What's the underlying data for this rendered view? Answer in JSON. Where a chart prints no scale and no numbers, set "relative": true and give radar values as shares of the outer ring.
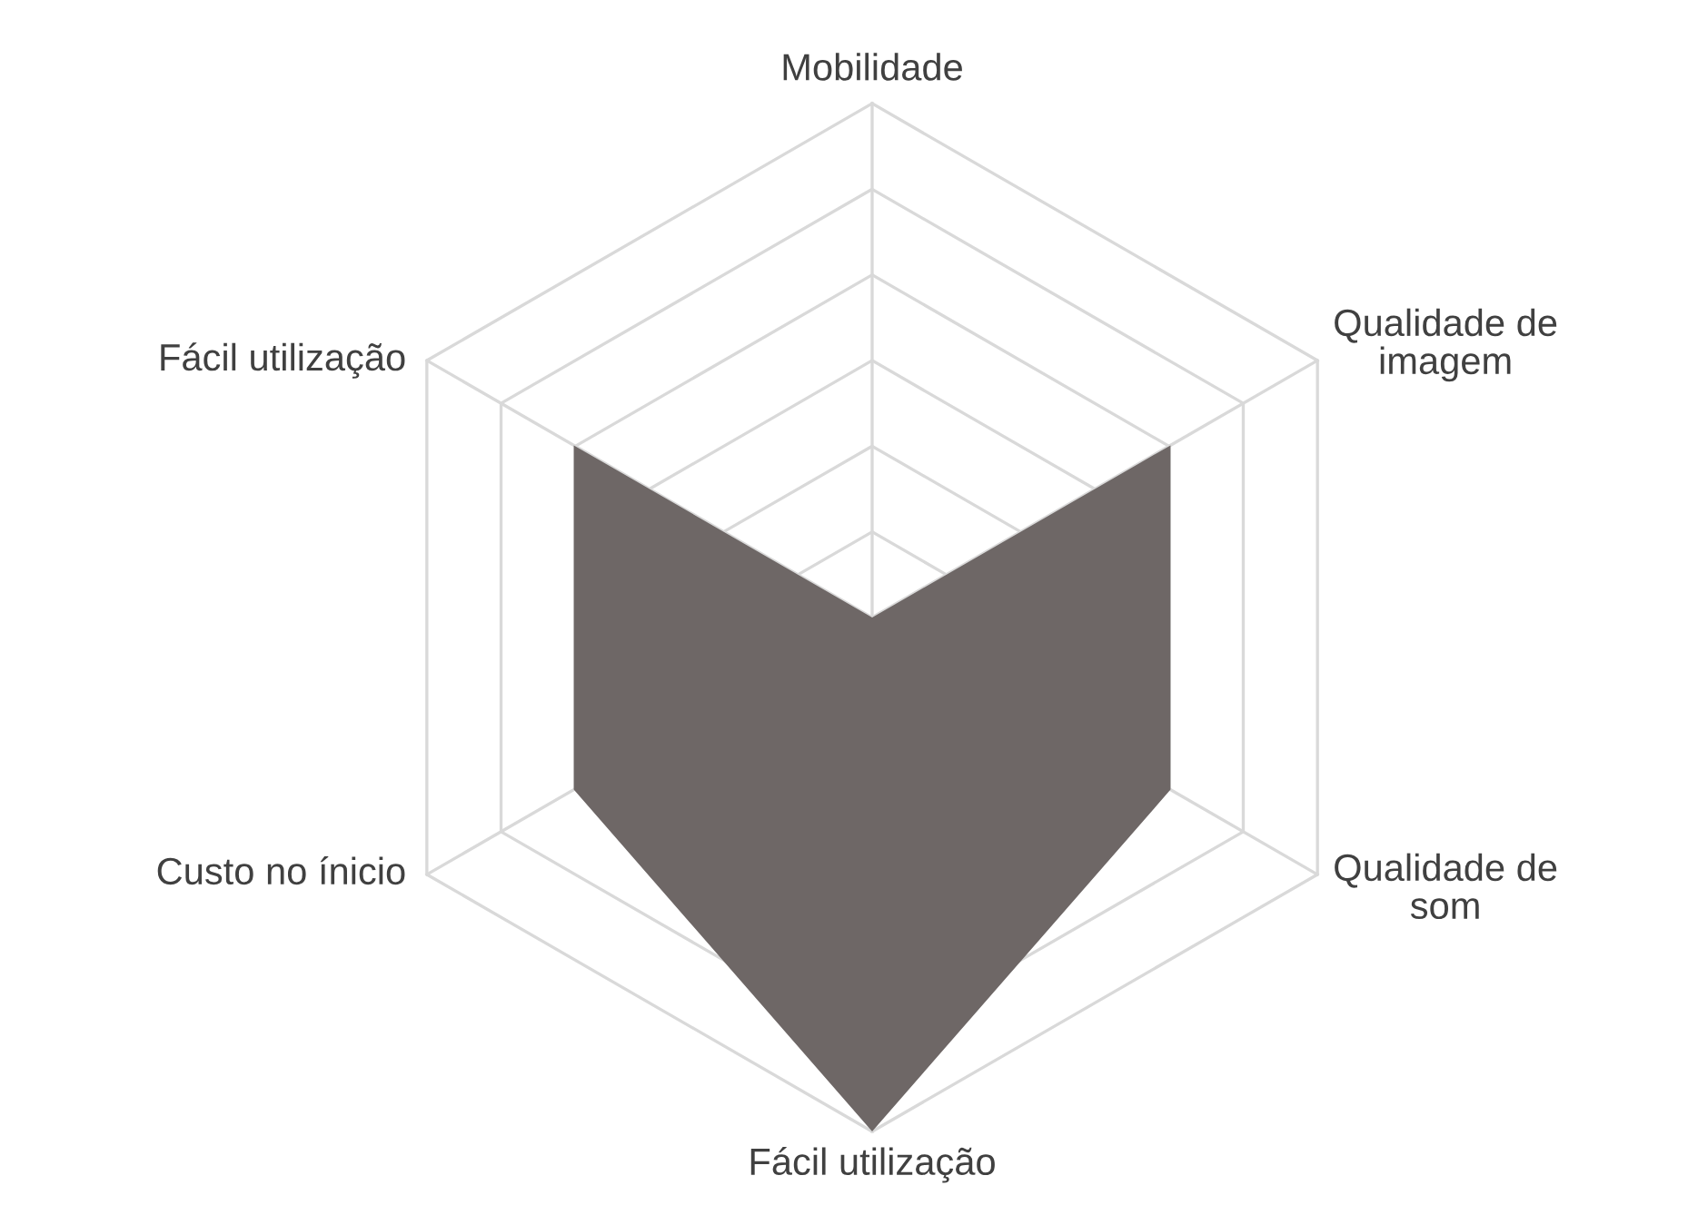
{
  "chart_data": {
    "type": "radar",
    "relative": true,
    "grid": true,
    "categories": [
      "Mobilidade",
      "Qualidade de imagem",
      "Qualidade de som",
      "Fácil utilização",
      "Custo no ínicio",
      "Fácil utilização"
    ],
    "series": [
      {
        "color": "#6e6766",
        "values": [
          0,
          0.67,
          0.67,
          1,
          0.67,
          0.67
        ]
      }
    ]
  }
}
